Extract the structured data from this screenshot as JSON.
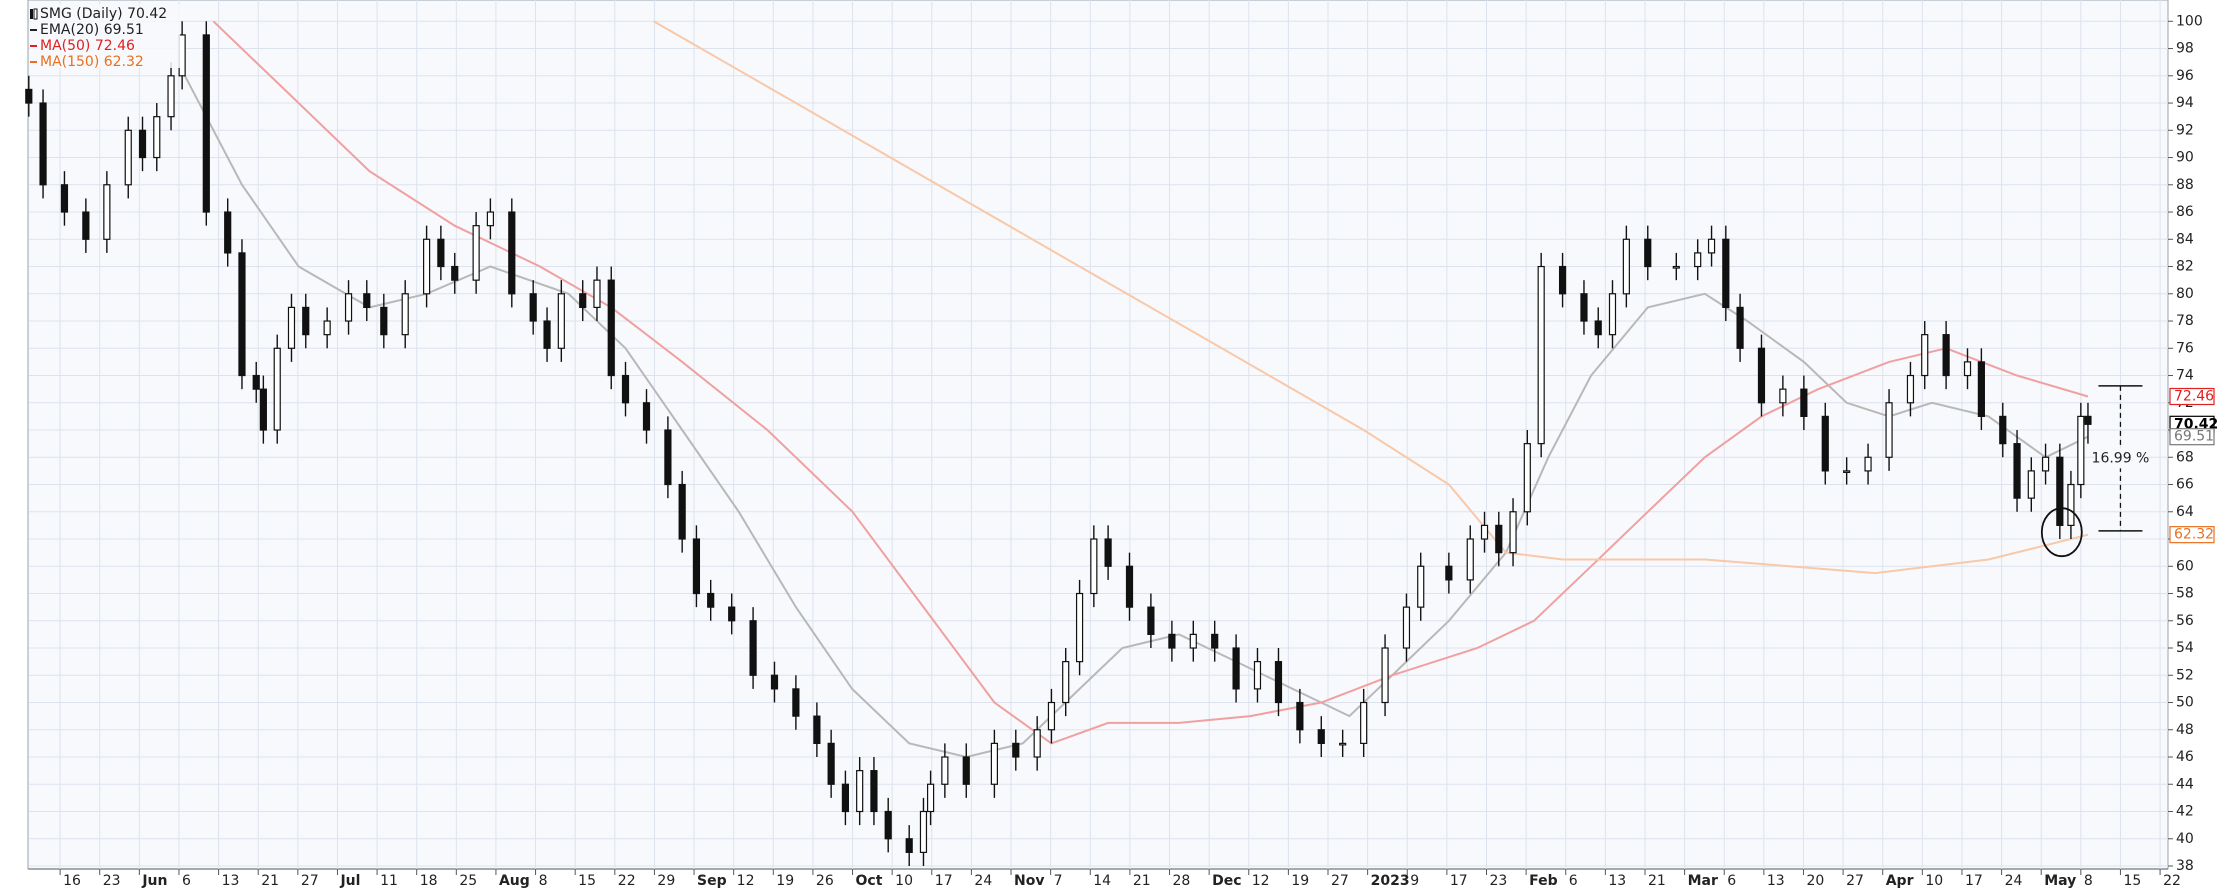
{
  "chart_data": {
    "type": "candlestick",
    "xlim": [
      -0.8,
      53.2
    ],
    "ylim": [
      38,
      100
    ],
    "grid": true,
    "xticks": [
      {
        "value": 0,
        "label": "16"
      },
      {
        "value": 1,
        "label": "23"
      },
      {
        "value": 2,
        "label": "Jun"
      },
      {
        "value": 3,
        "label": "6"
      },
      {
        "value": 4,
        "label": "13"
      },
      {
        "value": 5,
        "label": "21"
      },
      {
        "value": 6,
        "label": "27"
      },
      {
        "value": 7,
        "label": "Jul"
      },
      {
        "value": 8,
        "label": "11"
      },
      {
        "value": 9,
        "label": "18"
      },
      {
        "value": 10,
        "label": "25"
      },
      {
        "value": 11,
        "label": "Aug"
      },
      {
        "value": 12,
        "label": "8"
      },
      {
        "value": 13,
        "label": "15"
      },
      {
        "value": 14,
        "label": "22"
      },
      {
        "value": 15,
        "label": "29"
      },
      {
        "value": 16,
        "label": "Sep"
      },
      {
        "value": 17,
        "label": "12"
      },
      {
        "value": 18,
        "label": "19"
      },
      {
        "value": 19,
        "label": "26"
      },
      {
        "value": 20,
        "label": "Oct"
      },
      {
        "value": 21,
        "label": "10"
      },
      {
        "value": 22,
        "label": "17"
      },
      {
        "value": 23,
        "label": "24"
      },
      {
        "value": 24,
        "label": "Nov"
      },
      {
        "value": 25,
        "label": "7"
      },
      {
        "value": 26,
        "label": "14"
      },
      {
        "value": 27,
        "label": "21"
      },
      {
        "value": 28,
        "label": "28"
      },
      {
        "value": 29,
        "label": "Dec"
      },
      {
        "value": 30,
        "label": "12"
      },
      {
        "value": 31,
        "label": "19"
      },
      {
        "value": 32,
        "label": "27"
      },
      {
        "value": 33,
        "label": "2023"
      },
      {
        "value": 34,
        "label": "9"
      },
      {
        "value": 35,
        "label": "17"
      },
      {
        "value": 36,
        "label": "23"
      },
      {
        "value": 37,
        "label": "Feb"
      },
      {
        "value": 38,
        "label": "6"
      },
      {
        "value": 39,
        "label": "13"
      },
      {
        "value": 40,
        "label": "21"
      },
      {
        "value": 41,
        "label": "Mar"
      },
      {
        "value": 42,
        "label": "6"
      },
      {
        "value": 43,
        "label": "13"
      },
      {
        "value": 44,
        "label": "20"
      },
      {
        "value": 45,
        "label": "27"
      },
      {
        "value": 46,
        "label": "Apr"
      },
      {
        "value": 47,
        "label": "10"
      },
      {
        "value": 48,
        "label": "17"
      },
      {
        "value": 49,
        "label": "24"
      },
      {
        "value": 50,
        "label": "May"
      },
      {
        "value": 51,
        "label": "8"
      },
      {
        "value": 52,
        "label": "15"
      },
      {
        "value": 53,
        "label": "22"
      }
    ],
    "yticks": [
      38,
      40,
      42,
      44,
      46,
      48,
      50,
      52,
      54,
      56,
      58,
      60,
      62,
      64,
      66,
      68,
      70,
      72,
      74,
      76,
      78,
      80,
      82,
      84,
      86,
      88,
      90,
      92,
      94,
      96,
      98,
      100
    ],
    "candles": {
      "name": "SMG (Daily) 70.42",
      "label_color": "#222222",
      "x": [
        -0.79,
        -0.43,
        0.11,
        0.65,
        1.18,
        1.72,
        2.08,
        2.44,
        2.8,
        3.08,
        3.69,
        4.23,
        4.59,
        4.95,
        5.13,
        5.48,
        5.84,
        6.2,
        6.74,
        7.28,
        7.74,
        8.17,
        8.71,
        9.25,
        9.61,
        9.96,
        10.5,
        10.86,
        11.4,
        11.94,
        12.29,
        12.65,
        13.19,
        13.55,
        13.91,
        14.27,
        14.8,
        15.34,
        15.7,
        16.06,
        16.42,
        16.95,
        17.49,
        18.03,
        18.57,
        19.1,
        19.46,
        19.82,
        20.18,
        20.54,
        20.9,
        21.43,
        21.79,
        21.97,
        22.33,
        22.87,
        23.58,
        24.12,
        24.66,
        25.02,
        25.38,
        25.73,
        26.09,
        26.45,
        26.99,
        27.53,
        28.06,
        28.6,
        29.14,
        29.68,
        30.22,
        30.75,
        31.29,
        31.83,
        32.37,
        32.9,
        33.44,
        33.98,
        34.34,
        35.05,
        35.59,
        35.95,
        36.31,
        36.67,
        37.03,
        37.38,
        37.92,
        38.46,
        38.82,
        39.18,
        39.53,
        40.07,
        40.79,
        41.33,
        41.68,
        42.04,
        42.4,
        42.94,
        43.48,
        44.01,
        44.55,
        45.09,
        45.63,
        46.16,
        46.7,
        47.06,
        47.6,
        48.14,
        48.49,
        49.03,
        49.39,
        49.75,
        50.11,
        50.47,
        50.75,
        51.0,
        51.18
      ],
      "open": [
        95,
        94,
        88,
        86,
        84,
        88,
        92,
        90,
        93,
        96,
        99,
        86,
        83,
        74,
        73,
        70,
        76,
        79,
        77,
        78,
        80,
        79,
        77,
        80,
        84,
        82,
        81,
        85,
        86,
        80,
        78,
        76,
        80,
        79,
        81,
        74,
        72,
        70,
        66,
        62,
        58,
        57,
        56,
        52,
        51,
        49,
        47,
        44,
        42,
        45,
        42,
        40,
        39,
        42,
        44,
        46,
        44,
        47,
        46,
        48,
        50,
        53,
        58,
        62,
        60,
        57,
        55,
        54,
        55,
        54,
        51,
        53,
        50,
        48,
        47,
        47,
        50,
        54,
        57,
        60,
        59,
        62,
        63,
        61,
        64,
        69,
        82,
        80,
        78,
        77,
        80,
        84,
        82,
        82,
        83,
        84,
        79,
        76,
        72,
        73,
        71,
        67,
        67,
        68,
        72,
        74,
        77,
        74,
        75,
        71,
        69,
        65,
        67,
        68,
        63,
        66,
        71
      ],
      "high": [
        96,
        95,
        89,
        87,
        89,
        93,
        93,
        94,
        97,
        100,
        100,
        87,
        84,
        75,
        74,
        77,
        80,
        80,
        79,
        81,
        81,
        80,
        81,
        85,
        85,
        83,
        86,
        87,
        87,
        81,
        79,
        81,
        81,
        82,
        82,
        75,
        73,
        71,
        67,
        63,
        59,
        58,
        57,
        53,
        52,
        50,
        48,
        45,
        46,
        46,
        43,
        41,
        43,
        45,
        47,
        47,
        48,
        48,
        49,
        51,
        54,
        59,
        63,
        63,
        61,
        58,
        56,
        56,
        56,
        55,
        54,
        54,
        51,
        49,
        48,
        51,
        55,
        58,
        61,
        61,
        63,
        64,
        64,
        65,
        70,
        83,
        83,
        81,
        79,
        81,
        85,
        85,
        83,
        84,
        85,
        85,
        80,
        77,
        74,
        74,
        72,
        68,
        69,
        73,
        75,
        78,
        78,
        76,
        76,
        72,
        70,
        68,
        69,
        69,
        67,
        72,
        72
      ],
      "low": [
        93,
        87,
        85,
        83,
        83,
        87,
        89,
        89,
        92,
        95,
        85,
        82,
        73,
        72,
        69,
        69,
        75,
        76,
        76,
        77,
        78,
        76,
        76,
        79,
        81,
        80,
        80,
        84,
        79,
        77,
        75,
        75,
        78,
        78,
        73,
        71,
        69,
        65,
        61,
        57,
        56,
        55,
        51,
        50,
        48,
        46,
        43,
        41,
        41,
        41,
        39,
        38,
        38,
        41,
        43,
        43,
        43,
        45,
        45,
        47,
        49,
        52,
        57,
        59,
        56,
        54,
        53,
        53,
        53,
        50,
        50,
        49,
        47,
        46,
        46,
        46,
        49,
        53,
        56,
        58,
        58,
        61,
        60,
        60,
        63,
        68,
        79,
        77,
        76,
        76,
        79,
        81,
        81,
        81,
        82,
        78,
        75,
        71,
        71,
        70,
        66,
        66,
        66,
        67,
        71,
        73,
        73,
        73,
        70,
        68,
        64,
        64,
        66,
        62,
        62,
        65,
        69
      ],
      "close": [
        94,
        88,
        86,
        84,
        88,
        92,
        90,
        93,
        96,
        99,
        86,
        83,
        74,
        73,
        70,
        76,
        79,
        77,
        78,
        80,
        79,
        77,
        80,
        84,
        82,
        81,
        85,
        86,
        80,
        78,
        76,
        80,
        79,
        81,
        74,
        72,
        70,
        66,
        62,
        58,
        57,
        56,
        52,
        51,
        49,
        47,
        44,
        42,
        45,
        42,
        40,
        39,
        42,
        44,
        46,
        44,
        47,
        46,
        48,
        50,
        53,
        58,
        62,
        60,
        57,
        55,
        54,
        55,
        54,
        51,
        53,
        50,
        48,
        47,
        47,
        50,
        54,
        57,
        60,
        59,
        62,
        63,
        61,
        64,
        69,
        82,
        80,
        78,
        77,
        80,
        84,
        82,
        82,
        83,
        84,
        79,
        76,
        72,
        73,
        71,
        67,
        67,
        68,
        72,
        74,
        77,
        74,
        75,
        71,
        69,
        65,
        67,
        68,
        63,
        66,
        71,
        70.42
      ]
    },
    "series": [
      {
        "name": "EMA(20) 69.51",
        "color": "#b8b8b8",
        "label_color": "#222222",
        "x": [
          3.15,
          4.59,
          6.02,
          7.81,
          9.25,
          10.86,
          12.83,
          14.27,
          15.7,
          17.13,
          18.57,
          19.99,
          21.43,
          22.87,
          24.3,
          25.73,
          26.81,
          28.24,
          29.68,
          31.11,
          32.54,
          33.62,
          35.05,
          36.49,
          37.56,
          38.64,
          40.07,
          41.51,
          42.58,
          44.01,
          45.09,
          46.16,
          47.24,
          48.67,
          50.11,
          51.18
        ],
        "values": [
          96,
          88,
          82,
          79,
          80,
          82,
          80,
          76,
          70,
          64,
          57,
          51,
          47,
          46,
          47,
          51,
          54,
          55,
          53,
          51,
          49,
          52,
          56,
          61,
          68,
          74,
          79,
          80,
          78,
          75,
          72,
          71,
          72,
          71,
          68,
          69.51
        ]
      },
      {
        "name": "MA(50) 72.46",
        "color": "#f0a0a0",
        "label_color": "#e02020",
        "x": [
          3.87,
          5.66,
          7.81,
          9.96,
          12.11,
          13.91,
          15.7,
          17.85,
          20.0,
          21.79,
          23.58,
          25.02,
          26.45,
          28.24,
          30.04,
          31.83,
          33.62,
          35.77,
          37.2,
          38.64,
          40.07,
          41.51,
          42.94,
          44.37,
          46.16,
          47.6,
          49.39,
          51.18
        ],
        "values": [
          100,
          95,
          89,
          85,
          82,
          79,
          75,
          70,
          64,
          57,
          50,
          47,
          48.5,
          48.5,
          49,
          50,
          52,
          54,
          56,
          60,
          64,
          68,
          71,
          73,
          75,
          76,
          74,
          72.46
        ]
      },
      {
        "name": "MA(150) 62.32",
        "color": "#f8c8a8",
        "label_color": "#e87020",
        "x": [
          14.98,
          18.57,
          22.15,
          25.73,
          29.32,
          32.9,
          35.05,
          36.49,
          37.92,
          41.51,
          45.81,
          48.67,
          51.18
        ],
        "values": [
          100,
          94,
          88,
          82,
          76,
          70,
          66,
          61,
          60.5,
          60.5,
          59.5,
          60.5,
          62.32
        ]
      }
    ],
    "price_tags": [
      {
        "value": 72.46,
        "color": "#e02020"
      },
      {
        "value": 70.42,
        "color": "#000000"
      },
      {
        "value": 69.51,
        "color": "#777777"
      },
      {
        "value": 62.32,
        "color": "#e87020"
      }
    ],
    "annotations": {
      "range": {
        "label": "16.99 %",
        "x": 52.0,
        "y": [
          73.24,
          62.6
        ]
      },
      "circle": {
        "x": 50.52,
        "y": 62.5
      }
    }
  }
}
